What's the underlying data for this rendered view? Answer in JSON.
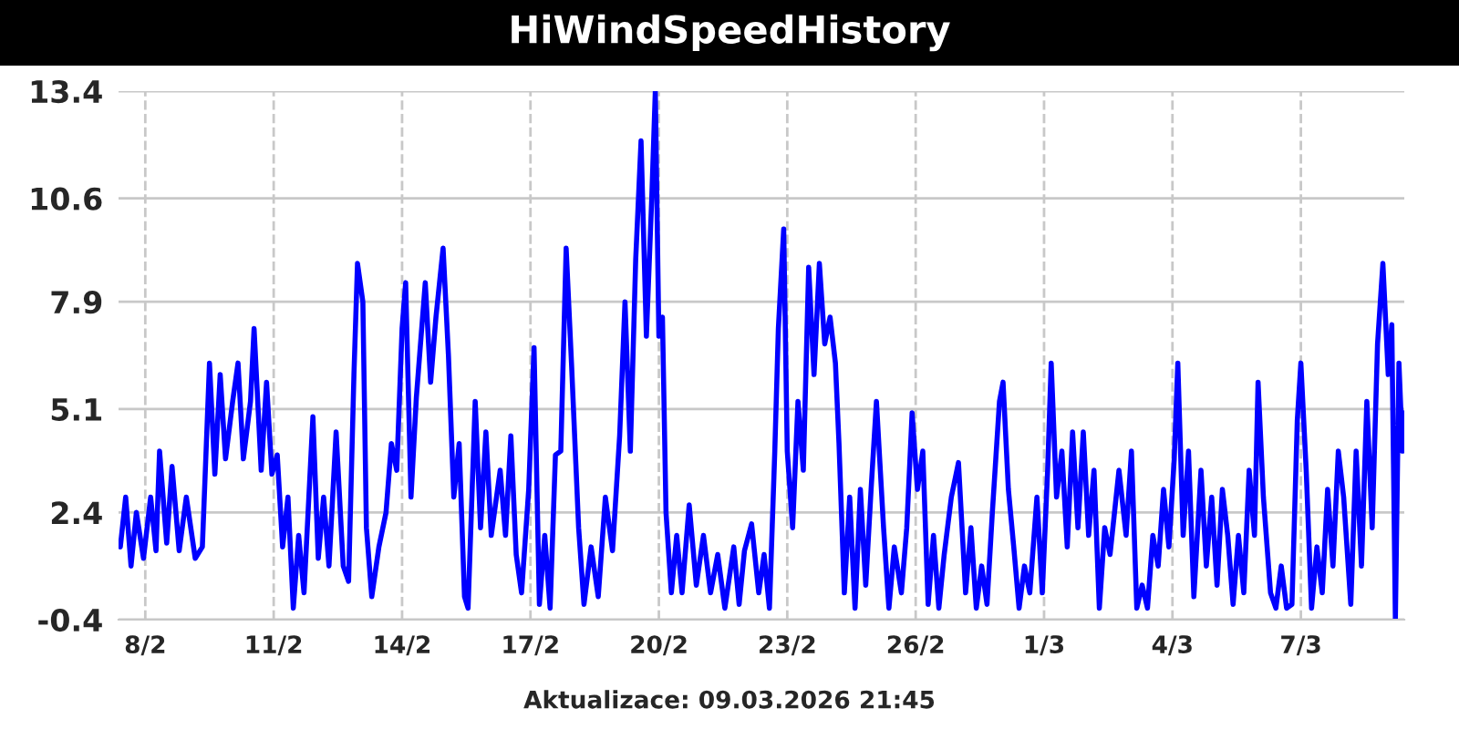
{
  "chart_data": {
    "type": "line",
    "title": "HiWindSpeedHistory",
    "annotations": [
      "Aktualizace: 09.03.2026 21:45"
    ],
    "x": [
      "2026-02-07T10:00",
      "2026-02-07T13:00",
      "2026-02-07T16:00",
      "2026-02-07T19:00",
      "2026-02-07T23:00",
      "2026-02-08T03:00",
      "2026-02-08T06:00",
      "2026-02-08T08:00",
      "2026-02-08T12:00",
      "2026-02-08T15:00",
      "2026-02-08T19:00",
      "2026-02-08T23:00",
      "2026-02-09T04:00",
      "2026-02-09T08:00",
      "2026-02-09T12:00",
      "2026-02-09T15:00",
      "2026-02-09T18:00",
      "2026-02-09T21:00",
      "2026-02-10T01:00",
      "2026-02-10T04:00",
      "2026-02-10T07:00",
      "2026-02-10T11:00",
      "2026-02-10T13:00",
      "2026-02-10T17:00",
      "2026-02-10T20:00",
      "2026-02-10T23:00",
      "2026-02-11T02:00",
      "2026-02-11T05:00",
      "2026-02-11T08:00",
      "2026-02-11T11:00",
      "2026-02-11T14:00",
      "2026-02-11T17:00",
      "2026-02-11T22:00",
      "2026-02-12T01:00",
      "2026-02-12T04:00",
      "2026-02-12T07:00",
      "2026-02-12T11:00",
      "2026-02-12T15:00",
      "2026-02-12T18:00",
      "2026-02-12T21:00",
      "2026-02-12T23:00",
      "2026-02-13T02:00",
      "2026-02-13T04:00",
      "2026-02-13T07:00",
      "2026-02-13T11:00",
      "2026-02-13T15:00",
      "2026-02-13T18:00",
      "2026-02-13T21:00",
      "2026-02-14T00:00",
      "2026-02-14T02:00",
      "2026-02-14T05:00",
      "2026-02-14T08:00",
      "2026-02-14T13:00",
      "2026-02-14T16:00",
      "2026-02-14T19:00",
      "2026-02-14T23:00",
      "2026-02-15T02:00",
      "2026-02-15T05:00",
      "2026-02-15T08:00",
      "2026-02-15T11:00",
      "2026-02-15T13:00",
      "2026-02-15T17:00",
      "2026-02-15T20:00",
      "2026-02-15T23:00",
      "2026-02-16T02:00",
      "2026-02-16T07:00",
      "2026-02-16T10:00",
      "2026-02-16T13:00",
      "2026-02-16T16:00",
      "2026-02-16T19:00",
      "2026-02-16T23:00",
      "2026-02-17T02:00",
      "2026-02-17T05:00",
      "2026-02-17T08:00",
      "2026-02-17T11:00",
      "2026-02-17T14:00",
      "2026-02-17T17:00",
      "2026-02-17T20:00",
      "2026-02-17T23:00",
      "2026-02-18T03:00",
      "2026-02-18T06:00",
      "2026-02-18T10:00",
      "2026-02-18T14:00",
      "2026-02-18T18:00",
      "2026-02-18T22:00",
      "2026-02-19T02:00",
      "2026-02-19T05:00",
      "2026-02-19T08:00",
      "2026-02-19T11:00",
      "2026-02-19T14:00",
      "2026-02-19T17:00",
      "2026-02-19T20:00",
      "2026-02-19T22:00",
      "2026-02-20T00:00",
      "2026-02-20T02:00",
      "2026-02-20T04:00",
      "2026-02-20T07:00",
      "2026-02-20T10:00",
      "2026-02-20T13:00",
      "2026-02-20T17:00",
      "2026-02-20T21:00",
      "2026-02-21T01:00",
      "2026-02-21T05:00",
      "2026-02-21T09:00",
      "2026-02-21T13:00",
      "2026-02-21T18:00",
      "2026-02-21T21:00",
      "2026-02-22T00:00",
      "2026-02-22T04:00",
      "2026-02-22T08:00",
      "2026-02-22T11:00",
      "2026-02-22T14:00",
      "2026-02-22T17:00",
      "2026-02-22T19:00",
      "2026-02-22T22:00",
      "2026-02-23T00:00",
      "2026-02-23T03:00",
      "2026-02-23T06:00",
      "2026-02-23T09:00",
      "2026-02-23T12:00",
      "2026-02-23T15:00",
      "2026-02-23T18:00",
      "2026-02-23T21:00",
      "2026-02-24T00:00",
      "2026-02-24T03:00",
      "2026-02-24T05:00",
      "2026-02-24T08:00",
      "2026-02-24T11:00",
      "2026-02-24T14:00",
      "2026-02-24T17:00",
      "2026-02-24T20:00",
      "2026-02-24T23:00",
      "2026-02-25T02:00",
      "2026-02-25T06:00",
      "2026-02-25T09:00",
      "2026-02-25T12:00",
      "2026-02-25T16:00",
      "2026-02-25T19:00",
      "2026-02-25T22:00",
      "2026-02-26T01:00",
      "2026-02-26T04:00",
      "2026-02-26T07:00",
      "2026-02-26T10:00",
      "2026-02-26T13:00",
      "2026-02-26T16:00",
      "2026-02-26T20:00",
      "2026-02-27T00:00",
      "2026-02-27T04:00",
      "2026-02-27T07:00",
      "2026-02-27T10:00",
      "2026-02-27T13:00",
      "2026-02-27T16:00",
      "2026-02-27T19:00",
      "2026-02-27T23:00",
      "2026-02-28T01:00",
      "2026-02-28T04:00",
      "2026-02-28T07:00",
      "2026-02-28T10:00",
      "2026-02-28T13:00",
      "2026-02-28T16:00",
      "2026-02-28T20:00",
      "2026-02-28T23:00",
      "2026-03-01T02:00",
      "2026-03-01T04:00",
      "2026-03-01T07:00",
      "2026-03-01T10:00",
      "2026-03-01T13:00",
      "2026-03-01T16:00",
      "2026-03-01T19:00",
      "2026-03-01T22:00",
      "2026-03-02T01:00",
      "2026-03-02T04:00",
      "2026-03-02T07:00",
      "2026-03-02T10:00",
      "2026-03-02T13:00",
      "2026-03-02T18:00",
      "2026-03-02T22:00",
      "2026-03-03T01:00",
      "2026-03-03T04:00",
      "2026-03-03T07:00",
      "2026-03-03T10:00",
      "2026-03-03T13:00",
      "2026-03-03T16:00",
      "2026-03-03T19:00",
      "2026-03-03T22:00",
      "2026-03-04T01:00",
      "2026-03-04T03:00",
      "2026-03-04T06:00",
      "2026-03-04T09:00",
      "2026-03-04T12:00",
      "2026-03-04T16:00",
      "2026-03-04T19:00",
      "2026-03-04T22:00",
      "2026-03-05T01:00",
      "2026-03-05T04:00",
      "2026-03-05T07:00",
      "2026-03-05T10:00",
      "2026-03-05T13:00",
      "2026-03-05T16:00",
      "2026-03-05T19:00",
      "2026-03-05T22:00",
      "2026-03-06T00:00",
      "2026-03-06T03:00",
      "2026-03-06T07:00",
      "2026-03-06T10:00",
      "2026-03-06T13:00",
      "2026-03-06T16:00",
      "2026-03-06T19:00",
      "2026-03-06T22:00",
      "2026-03-07T00:00",
      "2026-03-07T03:00",
      "2026-03-07T06:00",
      "2026-03-07T09:00",
      "2026-03-07T12:00",
      "2026-03-07T15:00",
      "2026-03-07T18:00",
      "2026-03-07T21:00",
      "2026-03-08T00:00",
      "2026-03-08T04:00",
      "2026-03-08T07:00",
      "2026-03-08T10:00",
      "2026-03-08T13:00",
      "2026-03-08T16:00",
      "2026-03-08T19:00",
      "2026-03-08T22:00",
      "2026-03-09T01:00",
      "2026-03-09T03:00",
      "2026-03-09T05:00",
      "2026-03-09T07:00",
      "2026-03-09T09:00",
      "2026-03-09T10:00"
    ],
    "series": [
      {
        "color": "#0000ff",
        "values": [
          1.5,
          2.8,
          1.0,
          2.4,
          1.2,
          2.8,
          1.4,
          4.0,
          1.6,
          3.6,
          1.4,
          2.8,
          1.2,
          1.5,
          6.3,
          3.4,
          6.0,
          3.8,
          5.3,
          6.3,
          3.8,
          5.3,
          7.2,
          3.5,
          5.8,
          3.4,
          3.9,
          1.5,
          2.8,
          -0.1,
          1.8,
          0.3,
          4.9,
          1.2,
          2.8,
          1.0,
          4.5,
          1.0,
          0.6,
          6.0,
          8.9,
          7.9,
          2.0,
          0.2,
          1.5,
          2.4,
          4.2,
          3.5,
          7.2,
          8.4,
          2.8,
          5.4,
          8.4,
          5.8,
          7.5,
          9.3,
          6.5,
          2.8,
          4.2,
          0.2,
          -0.1,
          5.3,
          2.0,
          4.5,
          1.8,
          3.5,
          1.8,
          4.4,
          1.3,
          0.3,
          3.0,
          6.7,
          0.0,
          1.8,
          -0.1,
          3.9,
          4.0,
          9.3,
          6.3,
          2.0,
          0.0,
          1.5,
          0.2,
          2.8,
          1.4,
          4.4,
          7.9,
          4.0,
          9.0,
          12.1,
          7.0,
          10.6,
          13.4,
          7.0,
          7.5,
          2.4,
          0.3,
          1.8,
          0.3,
          2.6,
          0.5,
          1.8,
          0.3,
          1.3,
          -0.1,
          1.5,
          0.0,
          1.4,
          2.1,
          0.3,
          1.3,
          -0.1,
          4.0,
          7.2,
          9.8,
          4.0,
          2.0,
          5.3,
          3.5,
          8.8,
          6.0,
          8.9,
          6.8,
          7.5,
          6.3,
          4.2,
          0.3,
          2.8,
          -0.1,
          3.0,
          0.5,
          3.0,
          5.3,
          2.0,
          -0.1,
          1.5,
          0.3,
          2.0,
          5.0,
          3.0,
          4.0,
          0.0,
          1.8,
          -0.1,
          1.3,
          2.8,
          3.7,
          0.3,
          2.0,
          -0.1,
          1.0,
          0.0,
          2.4,
          5.3,
          5.8,
          3.0,
          1.5,
          -0.1,
          1.0,
          0.3,
          2.8,
          0.3,
          3.5,
          6.3,
          2.8,
          4.0,
          1.5,
          4.5,
          2.0,
          4.5,
          1.8,
          3.5,
          -0.1,
          2.0,
          1.3,
          3.5,
          1.8,
          4.0,
          -0.1,
          0.5,
          -0.1,
          1.8,
          1.0,
          3.0,
          1.5,
          3.8,
          6.3,
          1.8,
          4.0,
          0.2,
          3.5,
          1.0,
          2.8,
          0.5,
          3.0,
          1.8,
          0.0,
          1.8,
          0.3,
          3.5,
          1.8,
          5.8,
          2.8,
          0.3,
          -0.1,
          1.0,
          -0.1,
          0.0,
          4.8,
          6.3,
          3.5,
          -0.1,
          1.5,
          0.3,
          3.0,
          1.0,
          4.0,
          2.8,
          0.0,
          4.0,
          1.0,
          5.3,
          2.0,
          6.8,
          8.9,
          6.0,
          7.3,
          -0.4,
          6.3,
          4.0,
          5.0
        ]
      }
    ],
    "xlim": [
      "2026-02-07T09:00",
      "2026-03-09T10:00"
    ],
    "xticks": [
      {
        "value": "2026-02-08",
        "label": "8/2"
      },
      {
        "value": "2026-02-11",
        "label": "11/2"
      },
      {
        "value": "2026-02-14",
        "label": "14/2"
      },
      {
        "value": "2026-02-17",
        "label": "17/2"
      },
      {
        "value": "2026-02-20",
        "label": "20/2"
      },
      {
        "value": "2026-02-23",
        "label": "23/2"
      },
      {
        "value": "2026-02-26",
        "label": "26/2"
      },
      {
        "value": "2026-03-01",
        "label": "1/3"
      },
      {
        "value": "2026-03-04",
        "label": "4/3"
      },
      {
        "value": "2026-03-07",
        "label": "7/3"
      }
    ],
    "ylim": [
      -0.4,
      13.4
    ],
    "yticks": [
      -0.4,
      2.4,
      5.1,
      7.9,
      10.6,
      13.4
    ],
    "grid": true,
    "line_style": "solid"
  }
}
